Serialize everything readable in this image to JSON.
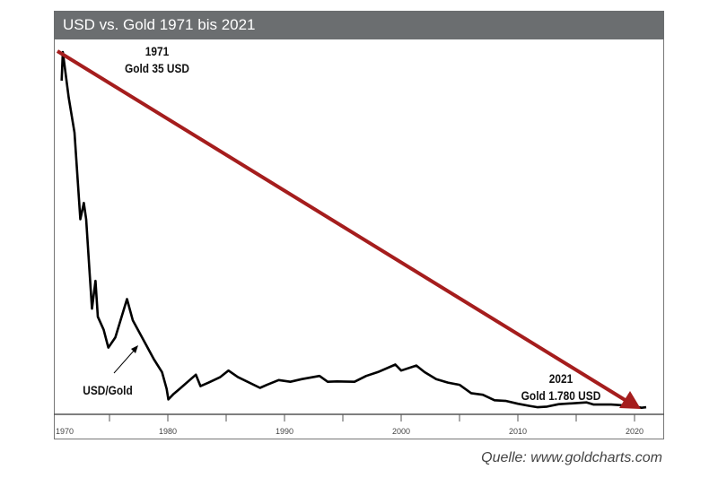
{
  "chart_data": {
    "type": "line",
    "title": "USD vs. Gold 1971 bis 2021",
    "xlabel": "",
    "ylabel": "",
    "xlim": [
      1969.7,
      2022.5
    ],
    "x_ticks": [
      1970,
      1980,
      1990,
      2000,
      2010,
      2020
    ],
    "series": [
      {
        "name": "USD/Gold",
        "unit": "gold price in USD (line shows 35/price)",
        "points": [
          [
            1970.9,
            38
          ],
          [
            1971.0,
            35
          ],
          [
            1971.5,
            40
          ],
          [
            1972,
            45
          ],
          [
            1972.5,
            65
          ],
          [
            1972.8,
            60
          ],
          [
            1973,
            65
          ],
          [
            1973.3,
            90
          ],
          [
            1973.5,
            120
          ],
          [
            1973.8,
            95
          ],
          [
            1974,
            130
          ],
          [
            1974.5,
            150
          ],
          [
            1974.9,
            190
          ],
          [
            1975.5,
            165
          ],
          [
            1976.5,
            110
          ],
          [
            1977,
            135
          ],
          [
            1978,
            175
          ],
          [
            1978.8,
            230
          ],
          [
            1979.5,
            300
          ],
          [
            1979.9,
            500
          ],
          [
            1980.05,
            850
          ],
          [
            1980.5,
            620
          ],
          [
            1981,
            500
          ],
          [
            1982.4,
            320
          ],
          [
            1982.8,
            450
          ],
          [
            1983.5,
            400
          ],
          [
            1984.5,
            340
          ],
          [
            1985.2,
            290
          ],
          [
            1986,
            340
          ],
          [
            1987.9,
            480
          ],
          [
            1988.5,
            430
          ],
          [
            1989.5,
            370
          ],
          [
            1990.5,
            390
          ],
          [
            1991.5,
            360
          ],
          [
            1993,
            330
          ],
          [
            1993.7,
            390
          ],
          [
            1994.5,
            385
          ],
          [
            1996,
            390
          ],
          [
            1997,
            330
          ],
          [
            1998,
            300
          ],
          [
            1999.5,
            255
          ],
          [
            2000,
            290
          ],
          [
            2001.3,
            260
          ],
          [
            2002,
            300
          ],
          [
            2003,
            360
          ],
          [
            2004,
            400
          ],
          [
            2005,
            430
          ],
          [
            2006,
            600
          ],
          [
            2007,
            650
          ],
          [
            2008,
            900
          ],
          [
            2009,
            950
          ],
          [
            2010,
            1200
          ],
          [
            2011,
            1500
          ],
          [
            2011.7,
            1800
          ],
          [
            2012.5,
            1650
          ],
          [
            2013.5,
            1250
          ],
          [
            2015.9,
            1060
          ],
          [
            2016.5,
            1300
          ],
          [
            2018,
            1300
          ],
          [
            2019,
            1400
          ],
          [
            2020,
            1600
          ],
          [
            2020.6,
            1950
          ],
          [
            2021,
            1780
          ]
        ]
      }
    ],
    "annotations": {
      "start_year": "1971",
      "start_label": "Gold 35 USD",
      "end_year": "2021",
      "end_label": "Gold 1.780 USD",
      "series_label": "USD/Gold"
    },
    "trend_arrow_color": "#a51d1d"
  },
  "source": "Quelle: www.goldcharts.com"
}
